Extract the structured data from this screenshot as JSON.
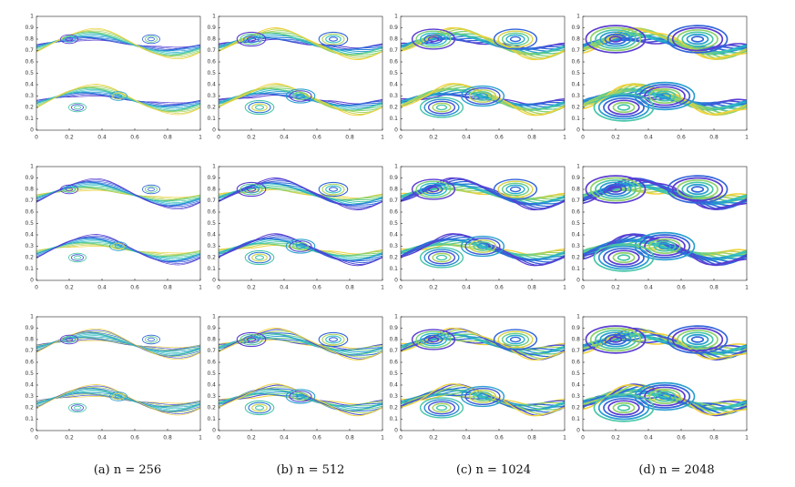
{
  "panels": {
    "xlim": [
      0,
      1
    ],
    "ylim": [
      0,
      1
    ],
    "xticks": [
      0,
      0.2,
      0.4,
      0.6,
      0.8,
      1
    ],
    "yticks": [
      0,
      0.1,
      0.2,
      0.3,
      0.4,
      0.5,
      0.6,
      0.7,
      0.8,
      0.9,
      1
    ]
  },
  "captions": [
    "(a) n = 256",
    "(b) n = 512",
    "(c) n = 1024",
    "(d) n = 2048"
  ]
}
